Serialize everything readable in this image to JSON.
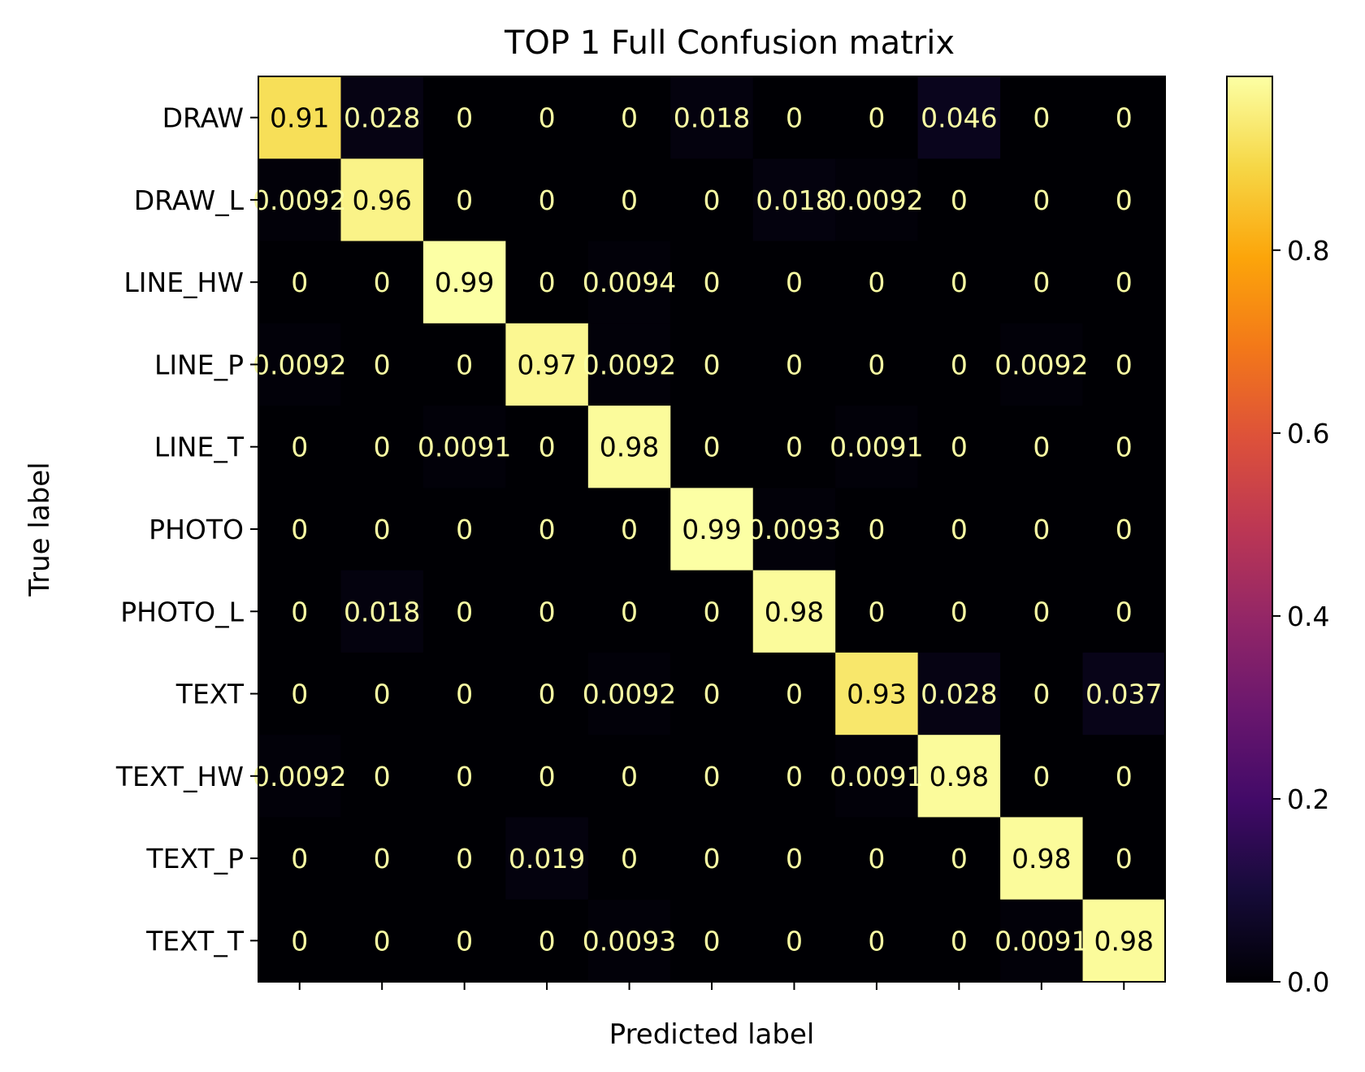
{
  "chart_data": {
    "type": "heatmap",
    "title": "TOP 1 Full Confusion matrix",
    "xlabel": "Predicted label",
    "ylabel": "True label",
    "x_tick_labels_visible": false,
    "row_labels": [
      "DRAW",
      "DRAW_L",
      "LINE_HW",
      "LINE_P",
      "LINE_T",
      "PHOTO",
      "PHOTO_L",
      "TEXT",
      "TEXT_HW",
      "TEXT_P",
      "TEXT_T"
    ],
    "values": [
      [
        "0.91",
        "0.028",
        "0",
        "0",
        "0",
        "0.018",
        "0",
        "0",
        "0.046",
        "0",
        "0"
      ],
      [
        "0.0092",
        "0.96",
        "0",
        "0",
        "0",
        "0",
        "0.018",
        "0.0092",
        "0",
        "0",
        "0"
      ],
      [
        "0",
        "0",
        "0.99",
        "0",
        "0.0094",
        "0",
        "0",
        "0",
        "0",
        "0",
        "0"
      ],
      [
        "0.0092",
        "0",
        "0",
        "0.97",
        "0.0092",
        "0",
        "0",
        "0",
        "0",
        "0.0092",
        "0"
      ],
      [
        "0",
        "0",
        "0.0091",
        "0",
        "0.98",
        "0",
        "0",
        "0.0091",
        "0",
        "0",
        "0"
      ],
      [
        "0",
        "0",
        "0",
        "0",
        "0",
        "0.99",
        "0.0093",
        "0",
        "0",
        "0",
        "0"
      ],
      [
        "0",
        "0.018",
        "0",
        "0",
        "0",
        "0",
        "0.98",
        "0",
        "0",
        "0",
        "0"
      ],
      [
        "0",
        "0",
        "0",
        "0",
        "0.0092",
        "0",
        "0",
        "0.93",
        "0.028",
        "0",
        "0.037"
      ],
      [
        "0.0092",
        "0",
        "0",
        "0",
        "0",
        "0",
        "0",
        "0.0091",
        "0.98",
        "0",
        "0"
      ],
      [
        "0",
        "0",
        "0",
        "0.019",
        "0",
        "0",
        "0",
        "0",
        "0",
        "0.98",
        "0"
      ],
      [
        "0",
        "0",
        "0",
        "0",
        "0.0093",
        "0",
        "0",
        "0",
        "0",
        "0.0091",
        "0.98"
      ]
    ],
    "colormap": "inferno",
    "colorbar": {
      "min": 0.0,
      "max": 0.99,
      "ticks": [
        0.0,
        0.2,
        0.4,
        0.6,
        0.8
      ],
      "tick_labels": [
        "0.0",
        "0.2",
        "0.4",
        "0.6",
        "0.8"
      ]
    },
    "text_color_dark_cell": "#fcffa4",
    "text_color_light_cell": "#000000"
  }
}
